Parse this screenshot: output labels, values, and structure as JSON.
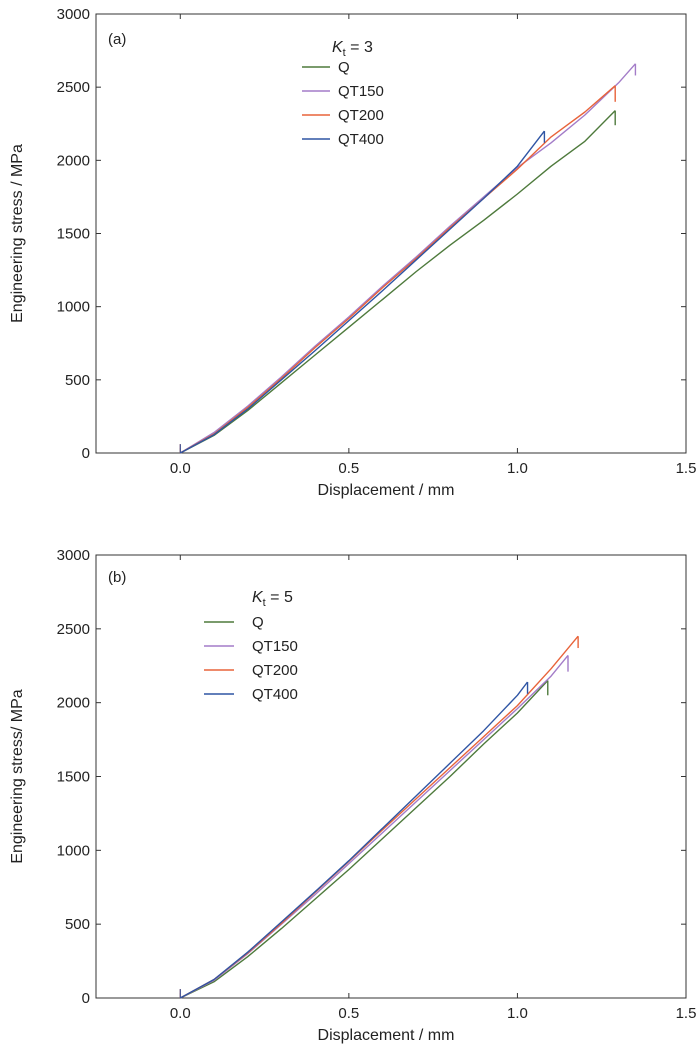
{
  "chart_data": [
    {
      "type": "line",
      "panel_label": "(a)",
      "legend_title": {
        "symbol": "K",
        "subscript": "t",
        "rest": " = 3"
      },
      "xlabel": "Displacement / mm",
      "ylabel": "Engineering stress / MPa",
      "xlim": [
        -0.25,
        1.5
      ],
      "ylim": [
        0,
        3000
      ],
      "xticks": [
        "0.0",
        "0.5",
        "1.0",
        "1.5"
      ],
      "yticks": [
        "0",
        "500",
        "1000",
        "1500",
        "2000",
        "2500",
        "3000"
      ],
      "legend_placement": "top-center",
      "grid": false,
      "series": [
        {
          "name": "Q",
          "color": "#4e7a3c",
          "x": [
            0.0,
            0.1,
            0.2,
            0.3,
            0.4,
            0.5,
            0.6,
            0.7,
            0.8,
            0.9,
            1.0,
            1.1,
            1.2,
            1.29
          ],
          "y": [
            0,
            120,
            290,
            480,
            670,
            860,
            1050,
            1240,
            1420,
            1590,
            1770,
            1960,
            2130,
            2340
          ],
          "fracture_to": 2240
        },
        {
          "name": "QT150",
          "color": "#a37cc8",
          "x": [
            0.0,
            0.1,
            0.2,
            0.3,
            0.4,
            0.5,
            0.6,
            0.7,
            0.8,
            0.9,
            1.0,
            1.1,
            1.2,
            1.3,
            1.35
          ],
          "y": [
            0,
            140,
            320,
            520,
            730,
            930,
            1140,
            1340,
            1550,
            1750,
            1950,
            2120,
            2310,
            2530,
            2660
          ],
          "fracture_to": 2580
        },
        {
          "name": "QT200",
          "color": "#e8633a",
          "x": [
            0.0,
            0.1,
            0.2,
            0.3,
            0.4,
            0.5,
            0.6,
            0.7,
            0.8,
            0.9,
            1.0,
            1.1,
            1.2,
            1.29
          ],
          "y": [
            0,
            130,
            310,
            510,
            720,
            920,
            1130,
            1330,
            1540,
            1740,
            1940,
            2160,
            2330,
            2510
          ],
          "fracture_to": 2400
        },
        {
          "name": "QT400",
          "color": "#2f55a4",
          "x": [
            0.0,
            0.1,
            0.2,
            0.3,
            0.4,
            0.5,
            0.6,
            0.7,
            0.8,
            0.9,
            1.0,
            1.08
          ],
          "y": [
            0,
            125,
            300,
            500,
            700,
            905,
            1110,
            1320,
            1530,
            1740,
            1960,
            2200
          ],
          "fracture_to": 2120
        }
      ]
    },
    {
      "type": "line",
      "panel_label": "(b)",
      "legend_title": {
        "symbol": "K",
        "subscript": "t",
        "rest": " = 5"
      },
      "xlabel": "Displacement / mm",
      "ylabel": "Engineering stress/ MPa",
      "xlim": [
        -0.25,
        1.5
      ],
      "ylim": [
        0,
        3000
      ],
      "xticks": [
        "0.0",
        "0.5",
        "1.0",
        "1.5"
      ],
      "yticks": [
        "0",
        "500",
        "1000",
        "1500",
        "2000",
        "2500",
        "3000"
      ],
      "legend_placement": "top-left",
      "grid": false,
      "series": [
        {
          "name": "Q",
          "color": "#4e7a3c",
          "x": [
            0.0,
            0.1,
            0.2,
            0.3,
            0.4,
            0.5,
            0.6,
            0.7,
            0.8,
            0.9,
            1.0,
            1.09
          ],
          "y": [
            0,
            110,
            280,
            470,
            670,
            870,
            1080,
            1290,
            1500,
            1720,
            1930,
            2150
          ],
          "fracture_to": 2050
        },
        {
          "name": "QT150",
          "color": "#a37cc8",
          "x": [
            0.0,
            0.1,
            0.2,
            0.3,
            0.4,
            0.5,
            0.6,
            0.7,
            0.8,
            0.9,
            1.0,
            1.1,
            1.15
          ],
          "y": [
            0,
            120,
            300,
            500,
            700,
            910,
            1120,
            1330,
            1540,
            1750,
            1960,
            2180,
            2320
          ],
          "fracture_to": 2210
        },
        {
          "name": "QT200",
          "color": "#e8633a",
          "x": [
            0.0,
            0.1,
            0.2,
            0.3,
            0.4,
            0.5,
            0.6,
            0.7,
            0.8,
            0.9,
            1.0,
            1.1,
            1.18
          ],
          "y": [
            0,
            125,
            305,
            505,
            715,
            925,
            1140,
            1350,
            1560,
            1770,
            1980,
            2230,
            2450
          ],
          "fracture_to": 2370
        },
        {
          "name": "QT400",
          "color": "#2f55a4",
          "x": [
            0.0,
            0.1,
            0.2,
            0.3,
            0.4,
            0.5,
            0.6,
            0.7,
            0.8,
            0.9,
            1.0,
            1.03
          ],
          "y": [
            0,
            125,
            310,
            515,
            720,
            930,
            1150,
            1370,
            1590,
            1810,
            2050,
            2140
          ],
          "fracture_to": 2060
        }
      ]
    }
  ]
}
